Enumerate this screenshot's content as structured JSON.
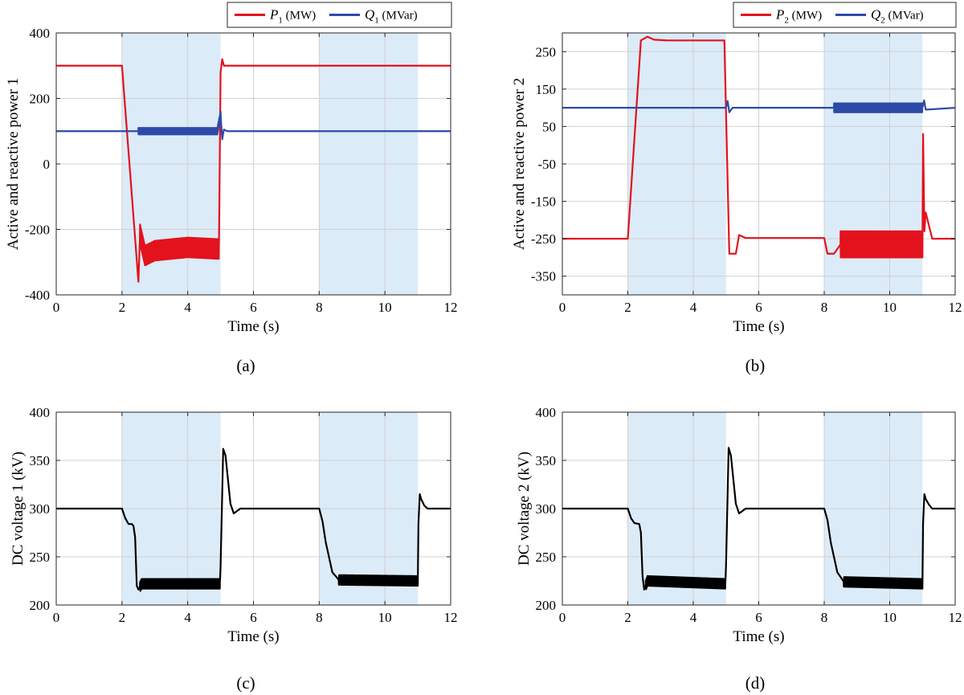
{
  "chart_data": [
    {
      "type": "line",
      "panel": "(a)",
      "xlabel": "Time (s)",
      "ylabel": "Active and reactive power 1",
      "xlim": [
        0,
        12
      ],
      "ylim": [
        -400,
        400
      ],
      "xticks": [
        "0",
        "2",
        "4",
        "6",
        "8",
        "10",
        "12"
      ],
      "yticks": [
        "-400",
        "-200",
        "0",
        "200",
        "400"
      ],
      "grid": true,
      "legend": "top-right, horizontal, outside",
      "shaded_intervals": [
        [
          2,
          5
        ],
        [
          8,
          11
        ]
      ],
      "series": [
        {
          "name": "P1 (MW)",
          "legend_symbol": "P",
          "legend_sub": "1",
          "legend_unit": " (MW)",
          "color": "#e3121d",
          "x": [
            0,
            2,
            2.5,
            2.55,
            2.7,
            3.0,
            4.0,
            4.95,
            5.0,
            5.05,
            5.1,
            5.3,
            6,
            8,
            11,
            12
          ],
          "y": [
            300,
            300,
            -360,
            -215,
            -280,
            -265,
            -255,
            -260,
            280,
            320,
            300,
            300,
            300,
            300,
            300,
            300
          ],
          "oscillation": {
            "from": 2.55,
            "to": 4.95,
            "amplitude": 30
          }
        },
        {
          "name": "Q1 (MVar)",
          "legend_symbol": "Q",
          "legend_sub": "1",
          "legend_unit": " (MVar)",
          "color": "#2e4aa8",
          "x": [
            0,
            2.5,
            4.9,
            5.0,
            5.05,
            5.1,
            5.2,
            12
          ],
          "y": [
            100,
            100,
            100,
            150,
            75,
            105,
            100,
            100
          ],
          "oscillation": {
            "from": 2.5,
            "to": 5.0,
            "amplitude": 10
          }
        }
      ]
    },
    {
      "type": "line",
      "panel": "(b)",
      "xlabel": "Time (s)",
      "ylabel": "Active and reactive power 2",
      "xlim": [
        0,
        12
      ],
      "ylim": [
        -400,
        300
      ],
      "xticks": [
        "0",
        "2",
        "4",
        "6",
        "8",
        "10",
        "12"
      ],
      "yticks": [
        "-350",
        "-250",
        "-150",
        "-50",
        "50",
        "150",
        "250"
      ],
      "grid": true,
      "legend": "top-right, horizontal, outside",
      "shaded_intervals": [
        [
          2,
          5
        ],
        [
          8,
          11
        ]
      ],
      "series": [
        {
          "name": "P2 (MW)",
          "legend_symbol": "P",
          "legend_sub": "2",
          "legend_unit": " (MW)",
          "color": "#e3121d",
          "x": [
            0,
            2.0,
            2.4,
            2.6,
            2.8,
            3.2,
            4.95,
            5.1,
            5.3,
            5.4,
            5.6,
            8.0,
            8.1,
            8.3,
            8.5,
            11.0,
            11.02,
            11.06,
            11.1,
            11.3,
            12
          ],
          "y": [
            -250,
            -250,
            280,
            290,
            282,
            280,
            280,
            -290,
            -290,
            -240,
            -248,
            -248,
            -290,
            -290,
            -265,
            -265,
            30,
            -230,
            -180,
            -250,
            -250
          ],
          "oscillation": {
            "from": 8.5,
            "to": 11.0,
            "amplitude": 35
          }
        },
        {
          "name": "Q2 (MVar)",
          "legend_symbol": "Q",
          "legend_sub": "2",
          "legend_unit": " (MVar)",
          "color": "#2e4aa8",
          "x": [
            0,
            5.0,
            5.05,
            5.1,
            5.2,
            8.3,
            11.0,
            11.05,
            11.1,
            12
          ],
          "y": [
            100,
            100,
            118,
            88,
            100,
            100,
            100,
            120,
            95,
            100
          ],
          "oscillation": {
            "from": 8.3,
            "to": 11.0,
            "amplitude": 12
          }
        }
      ]
    },
    {
      "type": "line",
      "panel": "(c)",
      "xlabel": "Time (s)",
      "ylabel": "DC voltage 1 (kV)",
      "xlim": [
        0,
        12
      ],
      "ylim": [
        200,
        400
      ],
      "xticks": [
        "0",
        "2",
        "4",
        "6",
        "8",
        "10",
        "12"
      ],
      "yticks": [
        "200",
        "250",
        "300",
        "350",
        "400"
      ],
      "grid": true,
      "shaded_intervals": [
        [
          2,
          5
        ],
        [
          8,
          11
        ]
      ],
      "series": [
        {
          "name": "",
          "color": "#000000",
          "x": [
            0,
            2.0,
            2.1,
            2.2,
            2.3,
            2.35,
            2.4,
            2.45,
            2.5,
            2.6,
            4.98,
            5.0,
            5.08,
            5.15,
            5.3,
            5.4,
            5.6,
            8.0,
            8.1,
            8.2,
            8.4,
            8.6,
            11.0,
            11.02,
            11.06,
            11.1,
            11.2,
            11.3,
            12
          ],
          "y": [
            300,
            300,
            290,
            284,
            284,
            282,
            270,
            220,
            216,
            222,
            222,
            240,
            362,
            355,
            305,
            295,
            300,
            300,
            287,
            265,
            234,
            226,
            225,
            285,
            315,
            310,
            303,
            300,
            300
          ],
          "oscillation": {
            "from": 2.55,
            "to": 11.0,
            "amplitude": 5,
            "windows": [
              [
                2.55,
                4.98
              ],
              [
                8.6,
                11.0
              ]
            ]
          }
        }
      ]
    },
    {
      "type": "line",
      "panel": "(d)",
      "xlabel": "Time (s)",
      "ylabel": "DC voltage 2 (kV)",
      "xlim": [
        0,
        12
      ],
      "ylim": [
        200,
        400
      ],
      "xticks": [
        "0",
        "2",
        "4",
        "6",
        "8",
        "10",
        "12"
      ],
      "yticks": [
        "200",
        "250",
        "300",
        "350",
        "400"
      ],
      "grid": true,
      "shaded_intervals": [
        [
          2,
          5
        ],
        [
          8,
          11
        ]
      ],
      "series": [
        {
          "name": "",
          "color": "#000000",
          "x": [
            0,
            2.0,
            2.1,
            2.2,
            2.35,
            2.4,
            2.45,
            2.5,
            2.6,
            4.98,
            5.0,
            5.08,
            5.15,
            5.3,
            5.4,
            5.6,
            8.0,
            8.1,
            8.2,
            8.4,
            8.6,
            11.0,
            11.02,
            11.06,
            11.1,
            11.2,
            11.3,
            12
          ],
          "y": [
            300,
            300,
            290,
            285,
            284,
            275,
            230,
            216,
            225,
            222,
            240,
            363,
            355,
            305,
            295,
            300,
            300,
            288,
            265,
            234,
            224,
            222,
            285,
            315,
            310,
            304,
            300,
            300
          ],
          "oscillation": {
            "from": 2.55,
            "to": 11.0,
            "amplitude": 5,
            "windows": [
              [
                2.55,
                4.98
              ],
              [
                8.6,
                11.0
              ]
            ]
          }
        }
      ]
    }
  ]
}
